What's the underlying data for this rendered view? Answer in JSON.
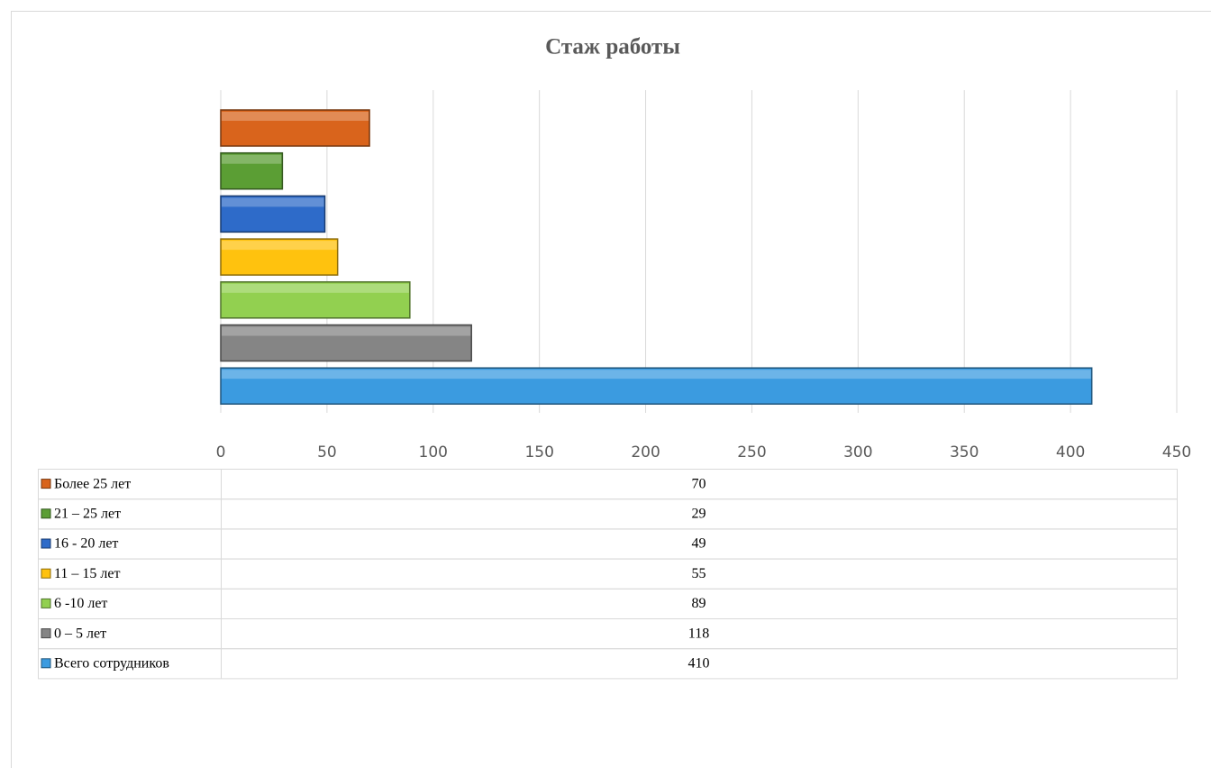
{
  "chart_data": {
    "type": "bar",
    "orientation": "horizontal",
    "title": "Стаж работы",
    "series": [
      {
        "name": "Более 25 лет",
        "color": "#d9641c",
        "values": [
          70
        ]
      },
      {
        "name": "21 – 25 лет",
        "color": "#5b9e34",
        "values": [
          29
        ]
      },
      {
        "name": "16 - 20 лет",
        "color": "#2e6bc9",
        "values": [
          49
        ]
      },
      {
        "name": "11 – 15 лет",
        "color": "#ffc20e",
        "values": [
          55
        ]
      },
      {
        "name": "6 -10 лет",
        "color": "#92d050",
        "values": [
          89
        ]
      },
      {
        "name": "0 – 5 лет",
        "color": "#858585",
        "values": [
          118
        ]
      },
      {
        "name": "Всего сотрудников",
        "color": "#3b9be0",
        "values": [
          410
        ]
      }
    ],
    "xlim": [
      0,
      450
    ],
    "xticks": [
      0,
      50,
      100,
      150,
      200,
      250,
      300,
      350,
      400,
      450
    ],
    "grid": true,
    "data_table": true
  }
}
